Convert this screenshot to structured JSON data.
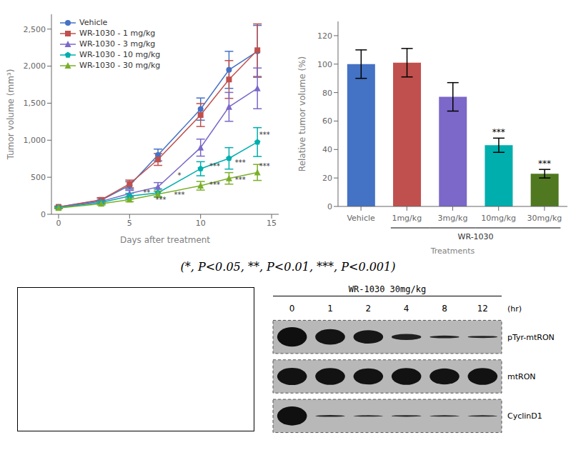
{
  "chart_data": [
    {
      "type": "line",
      "xlabel": "Days after treatment",
      "ylabel": "Tumor volume (mm³)",
      "x": [
        0,
        3,
        5,
        7,
        10,
        12,
        14
      ],
      "series": [
        {
          "name": "Vehicle",
          "color": "#4472C4",
          "marker": "circle",
          "values": [
            100,
            190,
            390,
            800,
            1420,
            1950,
            2200
          ],
          "error": [
            10,
            30,
            50,
            80,
            150,
            250,
            350
          ]
        },
        {
          "name": "WR-1030 - 1 mg/kg",
          "color": "#C0504D",
          "marker": "square",
          "values": [
            100,
            195,
            410,
            740,
            1340,
            1820,
            2215
          ],
          "error": [
            10,
            28,
            52,
            80,
            155,
            255,
            355
          ]
        },
        {
          "name": "WR-1030 - 3 mg/kg",
          "color": "#7B68C8",
          "marker": "triangle",
          "values": [
            95,
            175,
            280,
            370,
            900,
            1450,
            1700
          ],
          "error": [
            10,
            22,
            42,
            58,
            115,
            195,
            275
          ]
        },
        {
          "name": "WR-1030 - 10 mg/kg",
          "color": "#00AEAE",
          "marker": "pentagon",
          "values": [
            90,
            160,
            245,
            290,
            615,
            755,
            975
          ],
          "error": [
            10,
            22,
            38,
            52,
            95,
            145,
            195
          ]
        },
        {
          "name": "WR-1030 - 30 mg/kg",
          "color": "#7AAF2A",
          "marker": "triangle",
          "values": [
            85,
            143,
            198,
            272,
            385,
            485,
            565
          ],
          "error": [
            10,
            18,
            28,
            42,
            58,
            78,
            108
          ]
        }
      ],
      "xlim": [
        -0.5,
        15.5
      ],
      "xticks": [
        0,
        5,
        10,
        15
      ],
      "ylim": [
        0,
        2700
      ],
      "yticks": [
        0,
        500,
        {
          "value": 1000,
          "label": "1,000"
        },
        {
          "value": 1500,
          "label": "1,500"
        },
        {
          "value": 2000,
          "label": "2,000"
        },
        {
          "value": 2500,
          "label": "2,500"
        }
      ],
      "grid": false,
      "legend": "upper left",
      "annotations": [
        {
          "x": 6.2,
          "y": 240,
          "text": "**"
        },
        {
          "x": 7.2,
          "y": 148,
          "text": "***"
        },
        {
          "x": 8.5,
          "y": 470,
          "text": "*"
        },
        {
          "x": 8.5,
          "y": 215,
          "text": "***"
        },
        {
          "x": 11.0,
          "y": 595,
          "text": "***"
        },
        {
          "x": 11.0,
          "y": 345,
          "text": "***"
        },
        {
          "x": 12.8,
          "y": 650,
          "text": "***"
        },
        {
          "x": 12.8,
          "y": 415,
          "text": "***"
        },
        {
          "x": 14.5,
          "y": 1020,
          "text": "***"
        },
        {
          "x": 14.5,
          "y": 595,
          "text": "***"
        }
      ],
      "caption": "(*, P<0.05,  **, P<0.01, ***, P<0.001)"
    },
    {
      "type": "bar",
      "ylabel": "Relative tumor volume (%)",
      "xlabel": "Treatments",
      "categories": [
        "Vehicle",
        "1mg/kg",
        "3mg/kg",
        "10mg/kg",
        "30mg/kg"
      ],
      "values": [
        100,
        101,
        77,
        43,
        23
      ],
      "error_up": [
        10,
        10,
        10,
        5,
        3
      ],
      "error_down": [
        10,
        10,
        10,
        5,
        3
      ],
      "colors": [
        "#4472C4",
        "#C0504D",
        "#7B68C8",
        "#00AEAE",
        "#507820"
      ],
      "ylim": [
        0,
        130
      ],
      "yticks": [
        0,
        20,
        40,
        60,
        80,
        100,
        120
      ],
      "grid": false,
      "annotations": [
        {
          "category": "10mg/kg",
          "text": "***"
        },
        {
          "category": "30mg/kg",
          "text": "***"
        }
      ],
      "group_labels": [
        {
          "text": "WR-1030",
          "from": "1mg/kg",
          "to": "30mg/kg"
        }
      ]
    },
    {
      "type": "blot",
      "title": "WR-1030 30mg/kg",
      "xlabel": "(hr)",
      "categories": [
        "0",
        "1",
        "2",
        "4",
        "8",
        "12"
      ],
      "rows": [
        "pTyr-mtRON",
        "mtRON",
        "CyclinD1"
      ],
      "cells": [
        [
          0.9,
          0.72,
          0.62,
          0.28,
          0.12,
          0.1
        ],
        [
          0.8,
          0.78,
          0.75,
          0.78,
          0.74,
          0.78
        ],
        [
          0.88,
          0.08,
          0.06,
          0.07,
          0.05,
          0.05
        ]
      ]
    }
  ]
}
